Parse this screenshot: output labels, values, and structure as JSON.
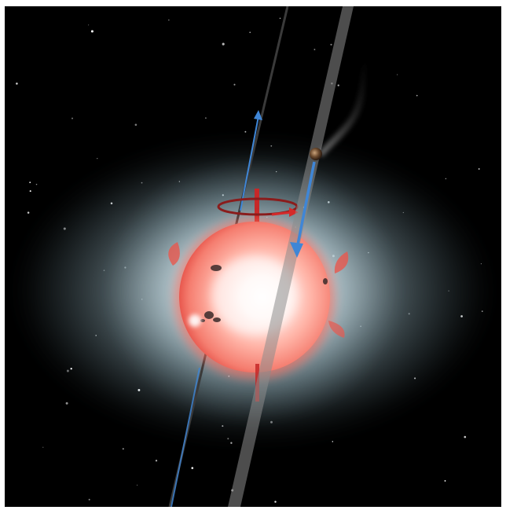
{
  "scene": {
    "background_color": "#000000",
    "frame_color": "#ffffff",
    "star": {
      "core_color": "#ffffff",
      "surface_color": "#ff8a7a",
      "limb_color": "#e8584e",
      "corona_color": "#b9d3dc",
      "spots_count": 5
    },
    "planet": {
      "color": "#6b4a2e",
      "tail_color": "#8a8a8a"
    },
    "orbit_band_color": "#8c8c8c",
    "arrows": {
      "spin_axis_color": "#d42a2a",
      "orbit_motion_color": "#3f86d6",
      "icons": [
        "rotation-arrow-icon",
        "orbit-direction-arrow-icon",
        "star-spin-axis-icon"
      ]
    },
    "background_stars": 80
  }
}
